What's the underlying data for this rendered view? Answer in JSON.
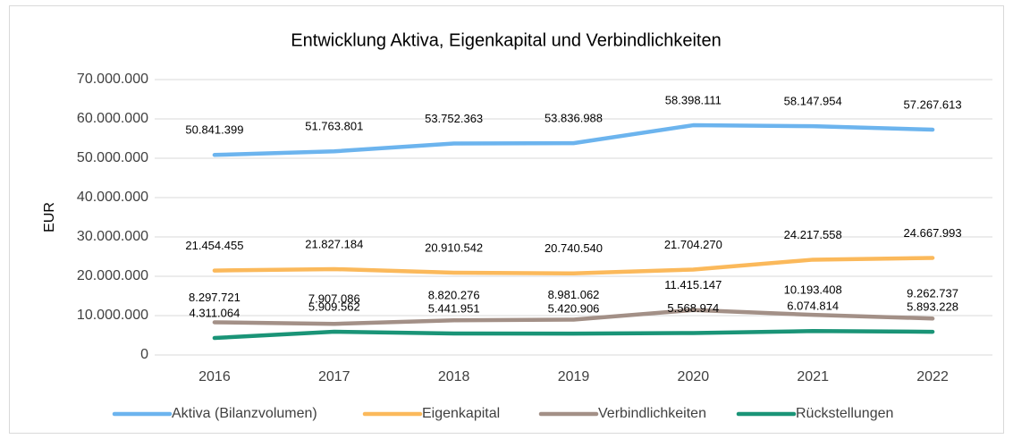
{
  "chart_data": {
    "type": "line",
    "title": "Entwicklung Aktiva, Eigenkapital und Verbindlichkeiten",
    "y_label": "EUR",
    "categories": [
      "2016",
      "2017",
      "2018",
      "2019",
      "2020",
      "2021",
      "2022"
    ],
    "ylim": [
      0,
      70000000
    ],
    "yticks": [
      0,
      {
        "value": 10000000,
        "label": "10.000.000"
      },
      {
        "value": 20000000,
        "label": "20.000.000"
      },
      {
        "value": 30000000,
        "label": "30.000.000"
      },
      {
        "value": 40000000,
        "label": "40.000.000"
      },
      {
        "value": 50000000,
        "label": "50.000.000"
      },
      {
        "value": 60000000,
        "label": "60.000.000"
      },
      {
        "value": 70000000,
        "label": "70.000.000"
      }
    ],
    "grid": true,
    "legend": "bottom",
    "series": [
      {
        "name": "Aktiva (Bilanzvolumen)",
        "color": "#6cb4ee",
        "values": [
          50841399,
          51763801,
          53752363,
          53836988,
          58398111,
          58147954,
          57267613
        ],
        "value_labels": [
          "50.841.399",
          "51.763.801",
          "53.752.363",
          "53.836.988",
          "58.398.111",
          "58.147.954",
          "57.267.613"
        ]
      },
      {
        "name": "Eigenkapital",
        "color": "#fbb95b",
        "values": [
          21454455,
          21827184,
          20910542,
          20740540,
          21704270,
          24217558,
          24667993
        ],
        "value_labels": [
          "21.454.455",
          "21.827.184",
          "20.910.542",
          "20.740.540",
          "21.704.270",
          "24.217.558",
          "24.667.993"
        ]
      },
      {
        "name": "Verbindlichkeiten",
        "color": "#a39087",
        "values": [
          8297721,
          7907086,
          8820276,
          8981062,
          11415147,
          10193408,
          9262737
        ],
        "value_labels": [
          "8.297.721",
          "7.907.086",
          "8.820.276",
          "8.981.062",
          "11.415.147",
          "10.193.408",
          "9.262.737"
        ]
      },
      {
        "name": "Rückstellungen",
        "color": "#1a9477",
        "values": [
          4311064,
          5909562,
          5441951,
          5420906,
          5568974,
          6074814,
          5893228
        ],
        "value_labels": [
          "4.311.064",
          "5.909.562",
          "5.441.951",
          "5.420.906",
          "5.568.974",
          "6.074.814",
          "5.893.228"
        ]
      }
    ]
  }
}
